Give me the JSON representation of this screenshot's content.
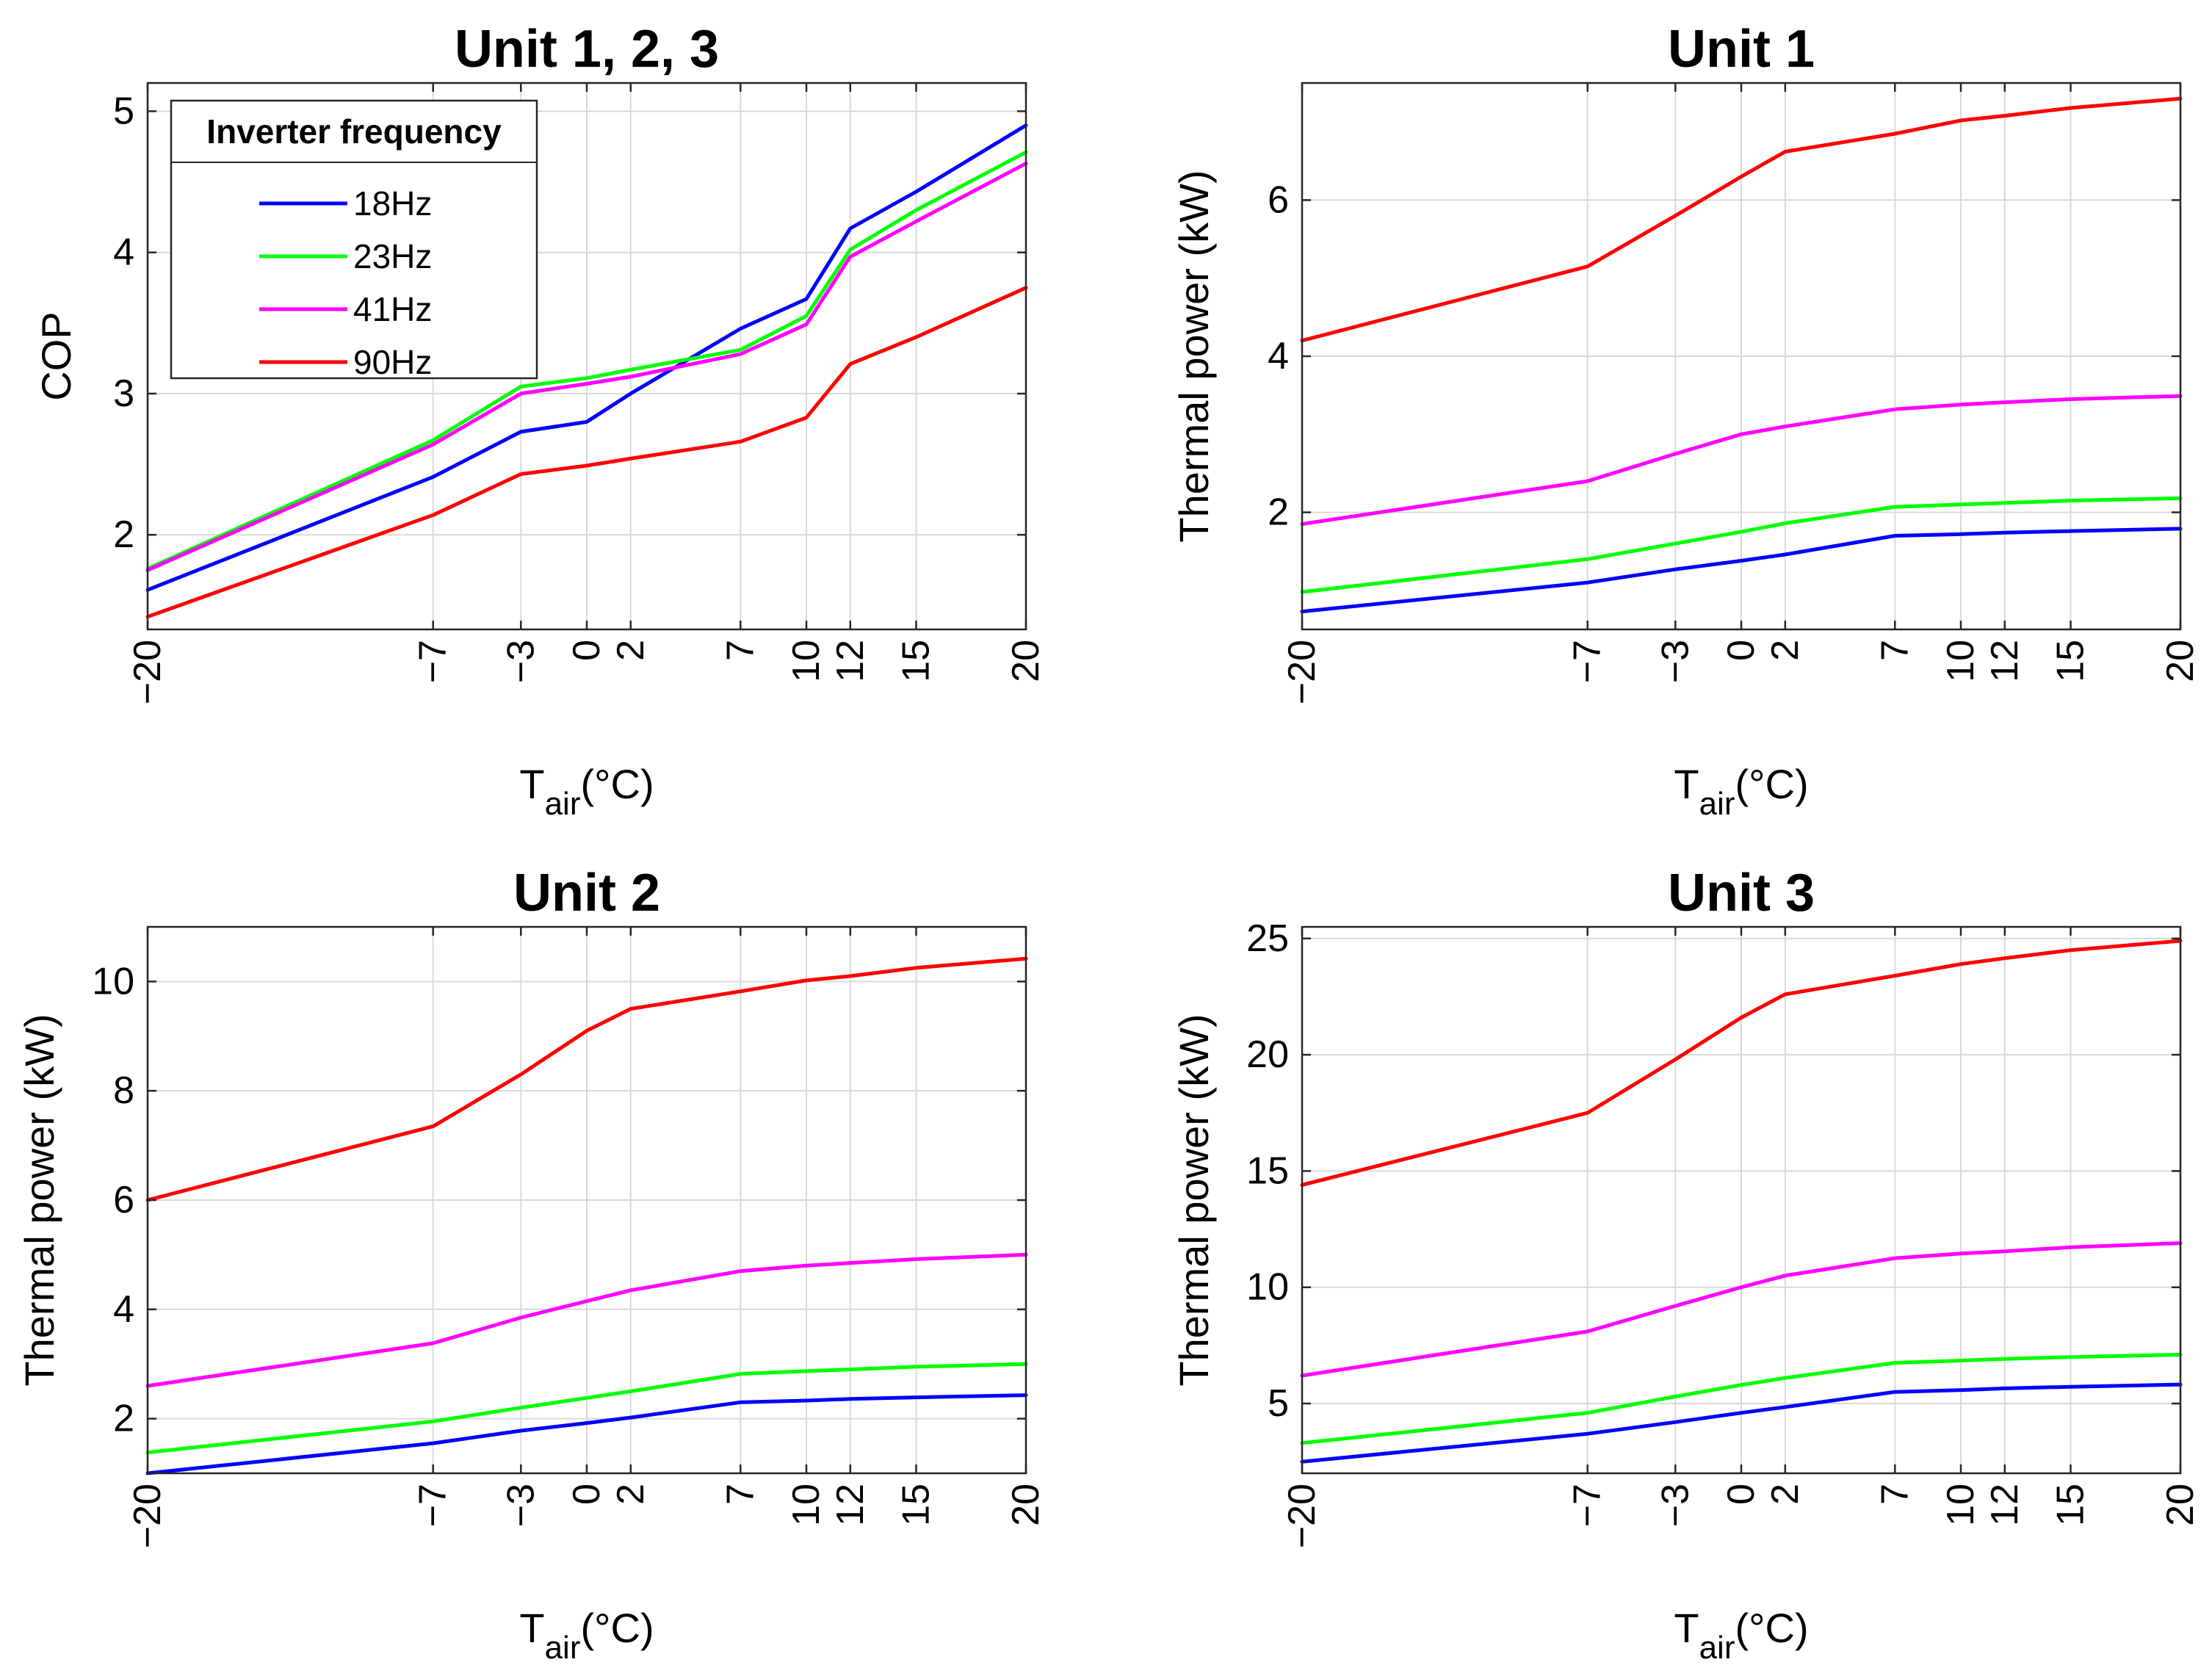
{
  "chart_data": [
    {
      "type": "line",
      "title": "Unit 1, 2, 3",
      "xlabel_main": "T",
      "xlabel_sub": "air",
      "xlabel_unit": "(°C)",
      "ylabel": "COP",
      "xlim": [
        -20,
        20
      ],
      "ylim": [
        1.33,
        5.2
      ],
      "xticks": [
        -20,
        -7,
        -3,
        0,
        2,
        7,
        10,
        12,
        15,
        20
      ],
      "xtick_labels": [
        "−20",
        "−7",
        "−3",
        "0",
        "2",
        "7",
        "10",
        "12",
        "15",
        "20"
      ],
      "yticks": [
        2,
        3,
        4,
        5
      ],
      "ytick_labels": [
        "2",
        "3",
        "4",
        "5"
      ],
      "x": [
        -20,
        -7,
        -3,
        0,
        2,
        7,
        10,
        12,
        15,
        20
      ],
      "legend": {
        "title": "Inverter frequency",
        "position": "top-left"
      },
      "series": [
        {
          "name": "18Hz",
          "color": "#0000ff",
          "values": [
            1.61,
            2.41,
            2.73,
            2.8,
            3.0,
            3.46,
            3.67,
            4.17,
            4.43,
            4.9
          ]
        },
        {
          "name": "23Hz",
          "color": "#00ff00",
          "values": [
            1.76,
            2.67,
            3.05,
            3.11,
            3.17,
            3.31,
            3.55,
            4.02,
            4.3,
            4.71
          ]
        },
        {
          "name": "41Hz",
          "color": "#ff00ff",
          "values": [
            1.75,
            2.64,
            3.0,
            3.07,
            3.12,
            3.28,
            3.49,
            3.97,
            4.22,
            4.63
          ]
        },
        {
          "name": "90Hz",
          "color": "#ff0000",
          "values": [
            1.42,
            2.14,
            2.43,
            2.49,
            2.54,
            2.66,
            2.83,
            3.21,
            3.4,
            3.75
          ]
        }
      ]
    },
    {
      "type": "line",
      "title": "Unit 1",
      "xlabel_main": "T",
      "xlabel_sub": "air",
      "xlabel_unit": "(°C)",
      "ylabel": "Thermal power (kW)",
      "xlim": [
        -20,
        20
      ],
      "ylim": [
        0.5,
        7.5
      ],
      "xticks": [
        -20,
        -7,
        -3,
        0,
        2,
        7,
        10,
        12,
        15,
        20
      ],
      "xtick_labels": [
        "−20",
        "−7",
        "−3",
        "0",
        "2",
        "7",
        "10",
        "12",
        "15",
        "20"
      ],
      "yticks": [
        2,
        4,
        6
      ],
      "ytick_labels": [
        "2",
        "4",
        "6"
      ],
      "x": [
        -20,
        -7,
        -3,
        0,
        2,
        7,
        10,
        12,
        15,
        20
      ],
      "series": [
        {
          "name": "18Hz",
          "color": "#0000ff",
          "values": [
            0.73,
            1.1,
            1.27,
            1.38,
            1.46,
            1.7,
            1.72,
            1.74,
            1.76,
            1.79
          ]
        },
        {
          "name": "23Hz",
          "color": "#00ff00",
          "values": [
            0.98,
            1.4,
            1.6,
            1.75,
            1.86,
            2.07,
            2.1,
            2.12,
            2.15,
            2.18
          ]
        },
        {
          "name": "41Hz",
          "color": "#ff00ff",
          "values": [
            1.85,
            2.4,
            2.75,
            3.0,
            3.1,
            3.32,
            3.38,
            3.41,
            3.45,
            3.49
          ]
        },
        {
          "name": "90Hz",
          "color": "#ff0000",
          "values": [
            4.2,
            5.15,
            5.8,
            6.3,
            6.62,
            6.85,
            7.02,
            7.08,
            7.18,
            7.3
          ]
        }
      ]
    },
    {
      "type": "line",
      "title": "Unit 2",
      "xlabel_main": "T",
      "xlabel_sub": "air",
      "xlabel_unit": "(°C)",
      "ylabel": "Thermal power (kW)",
      "xlim": [
        -20,
        20
      ],
      "ylim": [
        1.0,
        11.0
      ],
      "xticks": [
        -20,
        -7,
        -3,
        0,
        2,
        7,
        10,
        12,
        15,
        20
      ],
      "xtick_labels": [
        "−20",
        "−7",
        "−3",
        "0",
        "2",
        "7",
        "10",
        "12",
        "15",
        "20"
      ],
      "yticks": [
        2,
        4,
        6,
        8,
        10
      ],
      "ytick_labels": [
        "2",
        "4",
        "6",
        "8",
        "10"
      ],
      "x": [
        -20,
        -7,
        -3,
        0,
        2,
        7,
        10,
        12,
        15,
        20
      ],
      "series": [
        {
          "name": "18Hz",
          "color": "#0000ff",
          "values": [
            1.0,
            1.55,
            1.78,
            1.92,
            2.02,
            2.3,
            2.33,
            2.36,
            2.39,
            2.43
          ]
        },
        {
          "name": "23Hz",
          "color": "#00ff00",
          "values": [
            1.38,
            1.95,
            2.2,
            2.38,
            2.5,
            2.82,
            2.87,
            2.9,
            2.95,
            3.0
          ]
        },
        {
          "name": "41Hz",
          "color": "#ff00ff",
          "values": [
            2.6,
            3.38,
            3.85,
            4.15,
            4.35,
            4.7,
            4.8,
            4.85,
            4.92,
            5.0
          ]
        },
        {
          "name": "90Hz",
          "color": "#ff0000",
          "values": [
            6.0,
            7.35,
            8.3,
            9.1,
            9.5,
            9.82,
            10.02,
            10.1,
            10.25,
            10.42
          ]
        }
      ]
    },
    {
      "type": "line",
      "title": "Unit 3",
      "xlabel_main": "T",
      "xlabel_sub": "air",
      "xlabel_unit": "(°C)",
      "ylabel": "Thermal power (kW)",
      "xlim": [
        -20,
        20
      ],
      "ylim": [
        2.0,
        25.5
      ],
      "xticks": [
        -20,
        -7,
        -3,
        0,
        2,
        7,
        10,
        12,
        15,
        20
      ],
      "xtick_labels": [
        "−20",
        "−7",
        "−3",
        "0",
        "2",
        "7",
        "10",
        "12",
        "15",
        "20"
      ],
      "yticks": [
        5,
        10,
        15,
        20,
        25
      ],
      "ytick_labels": [
        "5",
        "10",
        "15",
        "20",
        "25"
      ],
      "x": [
        -20,
        -7,
        -3,
        0,
        2,
        7,
        10,
        12,
        15,
        20
      ],
      "series": [
        {
          "name": "18Hz",
          "color": "#0000ff",
          "values": [
            2.5,
            3.7,
            4.2,
            4.6,
            4.85,
            5.5,
            5.58,
            5.65,
            5.72,
            5.82
          ]
        },
        {
          "name": "23Hz",
          "color": "#00ff00",
          "values": [
            3.3,
            4.6,
            5.3,
            5.8,
            6.1,
            6.75,
            6.85,
            6.92,
            7.0,
            7.1
          ]
        },
        {
          "name": "41Hz",
          "color": "#ff00ff",
          "values": [
            6.2,
            8.1,
            9.2,
            10.0,
            10.5,
            11.25,
            11.45,
            11.55,
            11.72,
            11.9
          ]
        },
        {
          "name": "90Hz",
          "color": "#ff0000",
          "values": [
            14.4,
            17.5,
            19.8,
            21.6,
            22.6,
            23.4,
            23.9,
            24.15,
            24.5,
            24.9
          ]
        }
      ]
    }
  ]
}
